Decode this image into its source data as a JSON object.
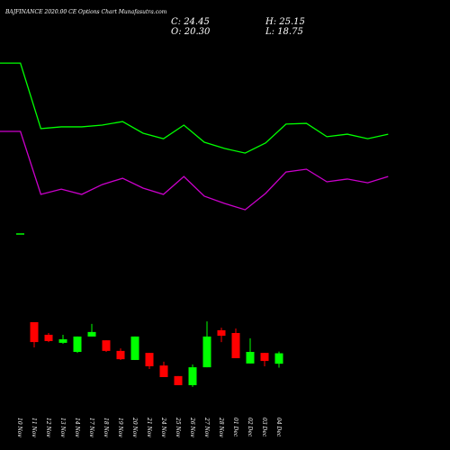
{
  "chart_data": [
    {
      "type": "candlestick",
      "title": "BAJFINANCE 2020.00 CE Options Chart Munafasutra.com",
      "close_label": "C: 24.45",
      "open_label": "O: 20.30",
      "high_label": "H: 25.15",
      "low_label": "L: 18.75",
      "categories": [
        "10 Nov",
        "11 Nov",
        "12 Nov",
        "13 Nov",
        "14 Nov",
        "17 Nov",
        "18 Nov",
        "19 Nov",
        "20 Nov",
        "21 Nov",
        "24 Nov",
        "25 Nov",
        "26 Nov",
        "27 Nov",
        "28 Nov",
        "01 Dec",
        "02 Dec",
        "03 Dec",
        "04 Dec"
      ],
      "open": [
        null,
        36.8,
        31.8,
        28.6,
        25.0,
        31.1,
        29.6,
        25.4,
        21.8,
        24.6,
        19.6,
        15.4,
        11.8,
        18.9,
        33.6,
        32.5,
        20.4,
        24.6,
        20.3
      ],
      "high": [
        null,
        36.8,
        32.5,
        31.8,
        31.1,
        36.1,
        29.6,
        26.4,
        31.1,
        24.6,
        21.1,
        15.4,
        20.0,
        37.1,
        34.6,
        34.3,
        30.4,
        24.6,
        25.15
      ],
      "low": [
        null,
        26.8,
        28.9,
        28.2,
        24.6,
        31.1,
        25.0,
        21.8,
        21.8,
        18.2,
        15.0,
        11.8,
        11.1,
        18.9,
        28.9,
        22.5,
        20.4,
        19.3,
        18.75
      ],
      "close": [
        null,
        28.9,
        29.3,
        30.0,
        31.1,
        32.9,
        25.4,
        22.1,
        31.1,
        19.3,
        15.0,
        11.8,
        18.9,
        31.1,
        31.4,
        22.5,
        25.0,
        21.4,
        24.45
      ],
      "up_color": "#00ff00",
      "down_color": "#ff0000"
    },
    {
      "type": "line",
      "categories": [
        null,
        null,
        null,
        null,
        null,
        null,
        null,
        null,
        null,
        null,
        null,
        null,
        null,
        null,
        null,
        null,
        null,
        null,
        null,
        null
      ],
      "series": [
        {
          "color": "#00ff00",
          "values": [
            139.6,
            139.6,
            113.6,
            114.3,
            114.3,
            115,
            116.4,
            111.8,
            109.6,
            115,
            108.2,
            105.7,
            103.9,
            107.9,
            115.4,
            115.7,
            110.4,
            111.4,
            109.6,
            111.4
          ]
        },
        {
          "color": "#cc00cc",
          "values": [
            112.5,
            112.5,
            87.5,
            89.6,
            87.5,
            91.4,
            93.9,
            90,
            87.5,
            94.6,
            86.8,
            83.9,
            81.4,
            87.9,
            96.4,
            97.5,
            92.5,
            93.6,
            92.1,
            94.6
          ]
        }
      ]
    }
  ]
}
